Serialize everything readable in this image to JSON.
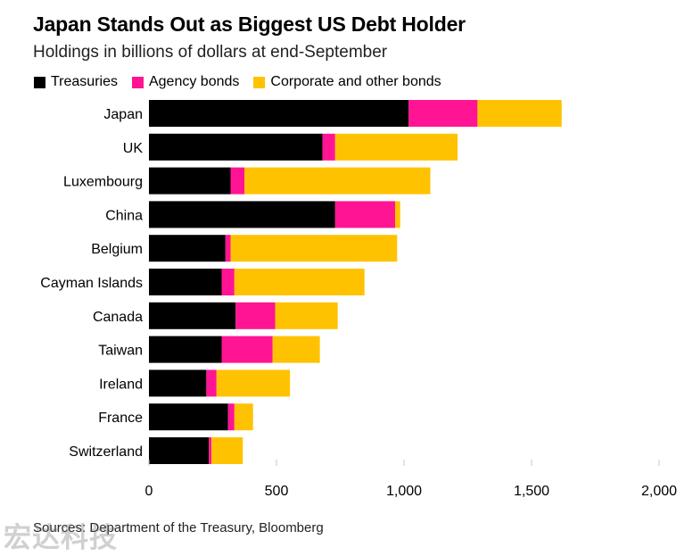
{
  "title": "Japan Stands Out as Biggest US Debt Holder",
  "subtitle": "Holdings in billions of dollars at end-September",
  "source": "Sources: Department of the Treasury, Bloomberg",
  "watermark": "宏达科技",
  "colors": {
    "treasuries": "#000000",
    "agency": "#ff1493",
    "corporate": "#ffc200",
    "axis_line": "#c8c8c8",
    "text": "#000000"
  },
  "chart_data": {
    "type": "bar",
    "orientation": "horizontal",
    "stacked": true,
    "categories": [
      "Japan",
      "UK",
      "Luxembourg",
      "China",
      "Belgium",
      "Cayman Islands",
      "Canada",
      "Taiwan",
      "Ireland",
      "France",
      "Switzerland"
    ],
    "series": [
      {
        "name": "Treasuries",
        "color": "#000000",
        "values": [
          1018,
          680,
          320,
          730,
          300,
          285,
          340,
          285,
          225,
          310,
          235
        ]
      },
      {
        "name": "Agency bonds",
        "color": "#ff1493",
        "values": [
          270,
          50,
          55,
          235,
          20,
          50,
          155,
          200,
          40,
          25,
          10
        ]
      },
      {
        "name": "Corporate and other bonds",
        "color": "#ffc200",
        "values": [
          330,
          480,
          728,
          20,
          653,
          510,
          245,
          185,
          288,
          73,
          123
        ]
      }
    ],
    "xlim": [
      0,
      2000
    ],
    "xticks": [
      0,
      500,
      1000,
      1500,
      2000
    ],
    "xtick_labels": [
      "0",
      "500",
      "1,000",
      "1,500",
      "2,000"
    ],
    "xlabel": "",
    "ylabel": "",
    "legend_position": "top-left",
    "grid": false
  }
}
